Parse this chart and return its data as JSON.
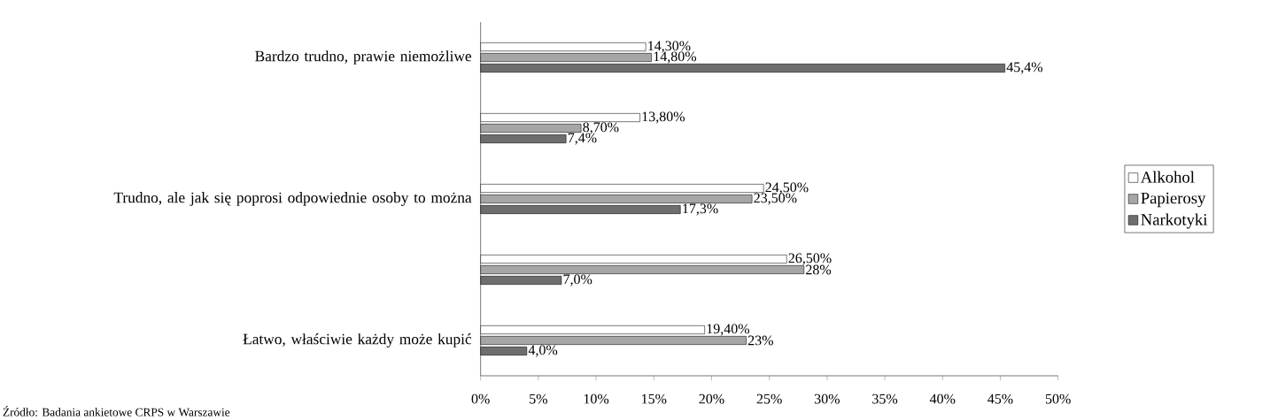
{
  "chart_data": {
    "type": "bar",
    "orientation": "horizontal",
    "categories": [
      "Bardzo trudno, prawie niemożliwe",
      null,
      "Trudno, ale jak się poprosi odpowiednie osoby to można",
      null,
      "Łatwo, właściwie każdy może kupić"
    ],
    "series": [
      {
        "name": "Alkohol",
        "color": "#ffffff",
        "values": [
          14.3,
          13.8,
          24.5,
          26.5,
          19.4
        ],
        "value_labels": [
          "14,30%",
          "13,80%",
          "24,50%",
          "26,50%",
          "19,40%"
        ]
      },
      {
        "name": "Papierosy",
        "color": "#a6a6a6",
        "values": [
          14.8,
          8.7,
          23.5,
          28,
          23
        ],
        "value_labels": [
          "14,80%",
          "8,70%",
          "23,50%",
          "28%",
          "23%"
        ]
      },
      {
        "name": "Narkotyki",
        "color": "#6e6e6e",
        "values": [
          45.4,
          7.4,
          17.3,
          7.0,
          4.0
        ],
        "value_labels": [
          "45,4%",
          "7,4%",
          "17,3%",
          "7,0%",
          "4,0%"
        ]
      }
    ],
    "xlim": [
      0,
      50
    ],
    "xticks": [
      {
        "value": 0,
        "label": "0%"
      },
      {
        "value": 5,
        "label": "5%"
      },
      {
        "value": 10,
        "label": "10%"
      },
      {
        "value": 15,
        "label": "15%"
      },
      {
        "value": 20,
        "label": "20%"
      },
      {
        "value": 25,
        "label": "25%"
      },
      {
        "value": 30,
        "label": "30%"
      },
      {
        "value": 35,
        "label": "35%"
      },
      {
        "value": 40,
        "label": "40%"
      },
      {
        "value": 45,
        "label": "45%"
      },
      {
        "value": 50,
        "label": "50%"
      }
    ],
    "legend": "right",
    "annotations": [
      "Źródło: Badania ankietowe CRPS w Warszawie"
    ]
  }
}
